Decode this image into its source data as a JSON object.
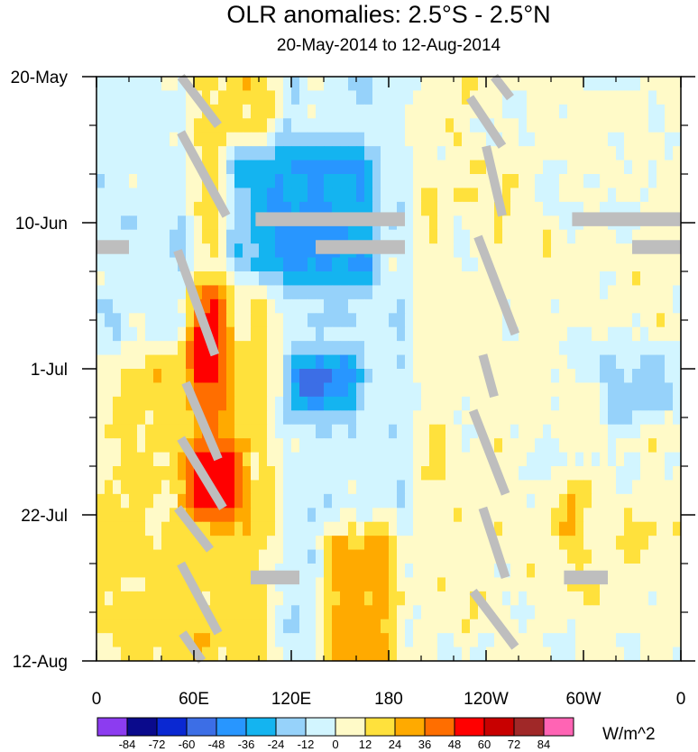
{
  "title": "OLR anomalies: 2.5°S - 2.5°N",
  "subtitle": "20-May-2014 to 12-Aug-2014",
  "units": "W/m^2",
  "chart_data": {
    "type": "heatmap",
    "title": "OLR anomalies: 2.5°S - 2.5°N",
    "subtitle": "20-May-2014 to 12-Aug-2014",
    "x_ticks": [
      {
        "lon": 0,
        "label": "0"
      },
      {
        "lon": 60,
        "label": "60E"
      },
      {
        "lon": 120,
        "label": "120E"
      },
      {
        "lon": 180,
        "label": "180"
      },
      {
        "lon": 240,
        "label": "120W"
      },
      {
        "lon": 300,
        "label": "60W"
      },
      {
        "lon": 360,
        "label": "0"
      }
    ],
    "xlim": [
      0,
      360
    ],
    "y_ticks": [
      {
        "day": 0,
        "label": "20-May"
      },
      {
        "day": 21,
        "label": "10-Jun"
      },
      {
        "day": 42,
        "label": "1-Jul"
      },
      {
        "day": 63,
        "label": "22-Jul"
      },
      {
        "day": 84,
        "label": "12-Aug"
      }
    ],
    "ylim": [
      0,
      84
    ],
    "colorbar": {
      "labels": [
        "-84",
        "-72",
        "-60",
        "-48",
        "-36",
        "-24",
        "-12",
        "0",
        "12",
        "24",
        "36",
        "48",
        "60",
        "72",
        "84"
      ],
      "colors": [
        "#8c3cf0",
        "#0a0a8c",
        "#0a28d2",
        "#3c6ee6",
        "#2896ff",
        "#14b4f0",
        "#96d2fa",
        "#d2f5ff",
        "#fffac8",
        "#ffe13c",
        "#ffaa00",
        "#ff6e00",
        "#ff0000",
        "#c80000",
        "#a02828",
        "#ff64b4"
      ]
    },
    "regions": [
      {
        "lon": [
          0,
          110
        ],
        "day": [
          0,
          84
        ],
        "value": 16
      },
      {
        "lon": [
          110,
          195
        ],
        "day": [
          0,
          84
        ],
        "value": -8
      },
      {
        "lon": [
          195,
          255
        ],
        "day": [
          0,
          84
        ],
        "value": 6
      },
      {
        "lon": [
          255,
          360
        ],
        "day": [
          0,
          84
        ],
        "value": 4
      },
      {
        "lon": [
          0,
          60
        ],
        "day": [
          0,
          40
        ],
        "value": -18
      },
      {
        "lon": [
          55,
          80
        ],
        "day": [
          30,
          50
        ],
        "value": 48
      },
      {
        "lon": [
          55,
          90
        ],
        "day": [
          52,
          64
        ],
        "value": 52
      },
      {
        "lon": [
          80,
          170
        ],
        "day": [
          10,
          30
        ],
        "value": -42
      },
      {
        "lon": [
          120,
          160
        ],
        "day": [
          40,
          48
        ],
        "value": -55
      },
      {
        "lon": [
          140,
          185
        ],
        "day": [
          64,
          84
        ],
        "value": 38
      },
      {
        "lon": [
          285,
          300
        ],
        "day": [
          58,
          68
        ],
        "value": 30
      },
      {
        "lon": [
          310,
          360
        ],
        "day": [
          38,
          50
        ],
        "value": -22
      }
    ],
    "missing_bands": [
      {
        "lon": [
          98,
          190
        ],
        "day": [
          19.5,
          21.5
        ]
      },
      {
        "lon": [
          135,
          190
        ],
        "day": [
          23.5,
          25.5
        ]
      },
      {
        "lon": [
          293,
          360
        ],
        "day": [
          19.5,
          21.5
        ]
      },
      {
        "lon": [
          330,
          360
        ],
        "day": [
          23.5,
          25.5
        ]
      },
      {
        "lon": [
          0,
          20
        ],
        "day": [
          23.5,
          25.5
        ]
      },
      {
        "lon": [
          95,
          125
        ],
        "day": [
          71,
          73
        ]
      },
      {
        "lon": [
          288,
          315
        ],
        "day": [
          71,
          73
        ]
      }
    ],
    "missing_streaks": [
      {
        "lon0": 52,
        "day0": 0,
        "lon1": 75,
        "day1": 7
      },
      {
        "lon0": 52,
        "day0": 8,
        "lon1": 80,
        "day1": 20
      },
      {
        "lon0": 50,
        "day0": 25,
        "lon1": 73,
        "day1": 40
      },
      {
        "lon0": 55,
        "day0": 44,
        "lon1": 75,
        "day1": 55
      },
      {
        "lon0": 52,
        "day0": 52,
        "lon1": 78,
        "day1": 62
      },
      {
        "lon0": 50,
        "day0": 62,
        "lon1": 70,
        "day1": 68
      },
      {
        "lon0": 52,
        "day0": 70,
        "lon1": 75,
        "day1": 80
      },
      {
        "lon0": 53,
        "day0": 80,
        "lon1": 65,
        "day1": 84
      },
      {
        "lon0": 245,
        "day0": 0,
        "lon1": 255,
        "day1": 3
      },
      {
        "lon0": 230,
        "day0": 3,
        "lon1": 250,
        "day1": 10
      },
      {
        "lon0": 240,
        "day0": 10,
        "lon1": 250,
        "day1": 20
      },
      {
        "lon0": 235,
        "day0": 23,
        "lon1": 258,
        "day1": 37
      },
      {
        "lon0": 238,
        "day0": 40,
        "lon1": 245,
        "day1": 46
      },
      {
        "lon0": 232,
        "day0": 48,
        "lon1": 252,
        "day1": 60
      },
      {
        "lon0": 238,
        "day0": 62,
        "lon1": 252,
        "day1": 72
      },
      {
        "lon0": 232,
        "day0": 74,
        "lon1": 258,
        "day1": 82
      }
    ]
  }
}
